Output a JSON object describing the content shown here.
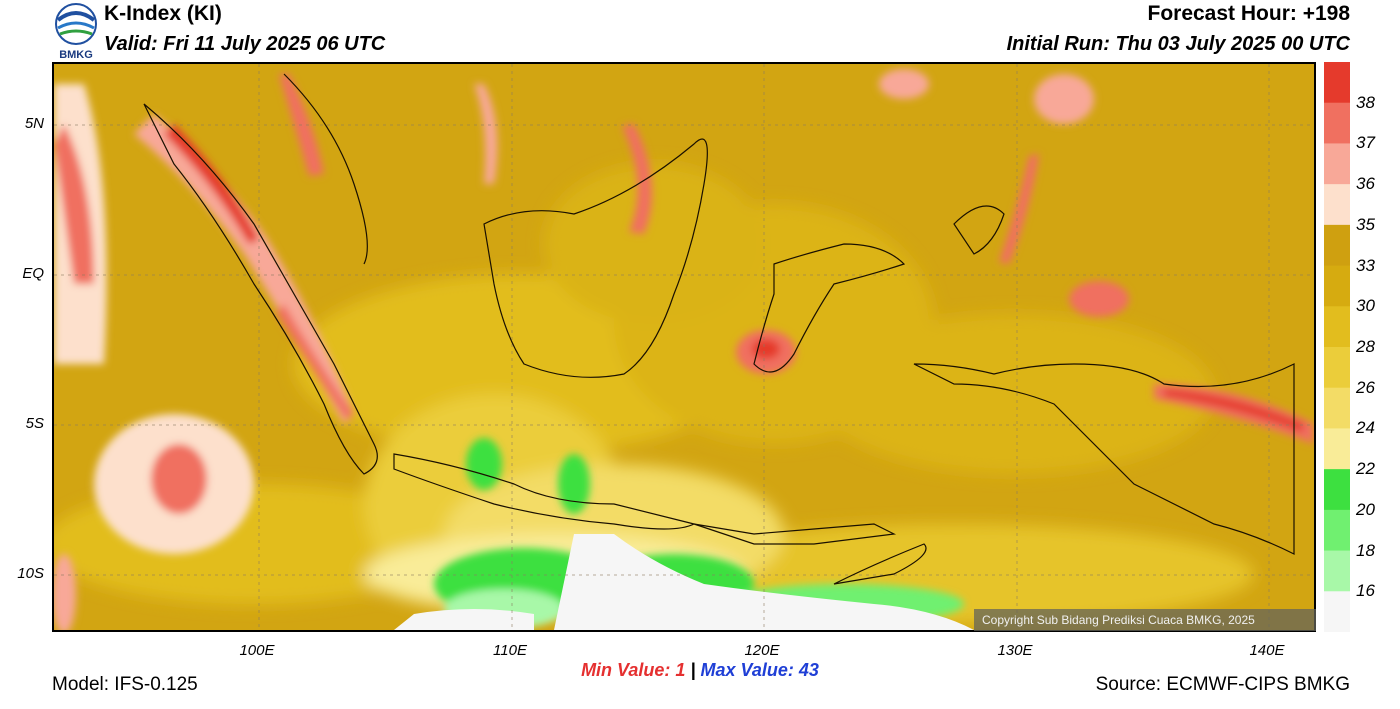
{
  "header": {
    "title": "K-Index (KI)",
    "valid": "Valid: Fri 11 July 2025 06 UTC",
    "forecast_hour": "Forecast Hour: +198",
    "initial_run": "Initial Run: Thu 03 July 2025 00 UTC",
    "logo_text": "BMKG"
  },
  "axes": {
    "lat_labels": [
      "5N",
      "EQ",
      "5S",
      "10S"
    ],
    "lon_labels": [
      "100E",
      "110E",
      "120E",
      "130E",
      "140E"
    ]
  },
  "legend": {
    "labels": [
      "38",
      "37",
      "36",
      "35",
      "33",
      "30",
      "28",
      "26",
      "24",
      "22",
      "20",
      "18",
      "16"
    ],
    "colors": [
      "#e53a2c",
      "#f07060",
      "#f8a898",
      "#fde0cc",
      "#cfa010",
      "#d6ab10",
      "#e2bd1e",
      "#ebcd3a",
      "#f3dc66",
      "#f9ec98",
      "#3de040",
      "#70f070",
      "#a8f8a8",
      "#f6f6f6"
    ]
  },
  "map": {
    "copyright": "Copyright Sub Bidang Prediksi Cuaca BMKG, 2025"
  },
  "footer": {
    "min_label": "Min Value:",
    "min_value": "1",
    "separator": "|",
    "max_label": "Max Value:",
    "max_value": "43",
    "model": "Model: IFS-0.125",
    "source": "Source: ECMWF-CIPS BMKG"
  }
}
